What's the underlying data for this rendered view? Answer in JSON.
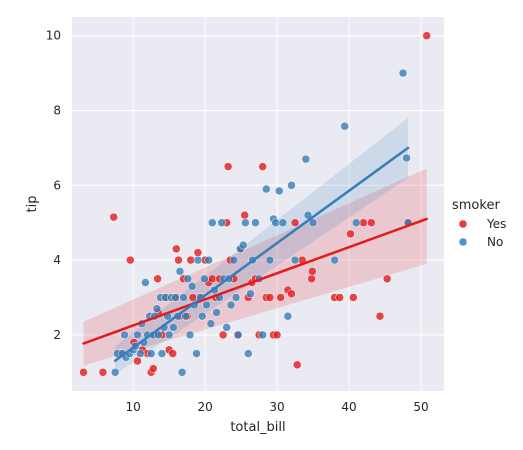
{
  "chart_data": {
    "type": "scatter",
    "title": "",
    "xlabel": "total_bill",
    "ylabel": "tip",
    "xlim": [
      1.5,
      53.2
    ],
    "ylim": [
      0.5,
      10.5
    ],
    "x_ticks": [
      "10",
      "20",
      "30",
      "40",
      "50"
    ],
    "y_ticks": [
      "2",
      "4",
      "6",
      "8",
      "10"
    ],
    "grid": true,
    "plot_background": "#eaeaf2",
    "legend": {
      "title": "smoker",
      "placement": "right"
    },
    "series": [
      {
        "name": "Yes",
        "color": "#e41a1c",
        "points": [
          [
            3.1,
            1.0
          ],
          [
            5.8,
            1.0
          ],
          [
            7.3,
            5.15
          ],
          [
            8.3,
            1.5
          ],
          [
            9.6,
            4.0
          ],
          [
            10.1,
            1.8
          ],
          [
            10.6,
            1.3
          ],
          [
            11.3,
            1.6
          ],
          [
            12.0,
            1.5
          ],
          [
            12.5,
            1.0
          ],
          [
            12.8,
            1.1
          ],
          [
            13.0,
            2.0
          ],
          [
            13.4,
            3.5
          ],
          [
            13.5,
            2.6
          ],
          [
            14.0,
            2.0
          ],
          [
            14.5,
            3.0
          ],
          [
            15.0,
            1.6
          ],
          [
            15.5,
            1.5
          ],
          [
            15.8,
            3.0
          ],
          [
            16.0,
            4.3
          ],
          [
            16.3,
            4.0
          ],
          [
            16.5,
            2.5
          ],
          [
            17.0,
            3.5
          ],
          [
            17.5,
            2.5
          ],
          [
            18.0,
            4.0
          ],
          [
            18.3,
            3.0
          ],
          [
            19.0,
            4.2
          ],
          [
            19.5,
            3.0
          ],
          [
            20.0,
            4.0
          ],
          [
            20.5,
            3.4
          ],
          [
            21.0,
            3.5
          ],
          [
            21.5,
            3.0
          ],
          [
            22.0,
            3.5
          ],
          [
            22.5,
            2.0
          ],
          [
            23.0,
            5.0
          ],
          [
            23.2,
            6.5
          ],
          [
            23.5,
            4.0
          ],
          [
            24.0,
            3.5
          ],
          [
            24.5,
            2.0
          ],
          [
            25.0,
            4.3
          ],
          [
            25.5,
            5.2
          ],
          [
            26.0,
            3.0
          ],
          [
            26.5,
            3.4
          ],
          [
            27.0,
            3.5
          ],
          [
            27.5,
            2.0
          ],
          [
            28.0,
            6.5
          ],
          [
            28.5,
            3.0
          ],
          [
            29.0,
            3.0
          ],
          [
            29.5,
            2.0
          ],
          [
            30.0,
            2.0
          ],
          [
            30.5,
            3.0
          ],
          [
            31.5,
            3.2
          ],
          [
            32.0,
            3.1
          ],
          [
            32.5,
            5.0
          ],
          [
            32.8,
            1.2
          ],
          [
            33.5,
            4.0
          ],
          [
            34.8,
            3.5
          ],
          [
            34.9,
            3.7
          ],
          [
            38.0,
            3.0
          ],
          [
            38.7,
            3.0
          ],
          [
            40.2,
            4.7
          ],
          [
            40.6,
            3.0
          ],
          [
            42.0,
            5.0
          ],
          [
            43.1,
            5.0
          ],
          [
            44.3,
            2.5
          ],
          [
            45.3,
            3.5
          ],
          [
            48.3,
            5.0
          ],
          [
            50.8,
            10.0
          ]
        ],
        "regression": {
          "x_range": [
            3.1,
            50.8
          ],
          "y_range": [
            1.77,
            5.1
          ],
          "ci_lower": [
            1.18,
            3.9
          ],
          "ci_upper": [
            2.35,
            6.45
          ]
        }
      },
      {
        "name": "No",
        "color": "#377eb8",
        "points": [
          [
            7.5,
            1.0
          ],
          [
            7.8,
            1.5
          ],
          [
            8.5,
            1.5
          ],
          [
            8.8,
            2.0
          ],
          [
            9.0,
            1.4
          ],
          [
            9.5,
            1.5
          ],
          [
            10.0,
            1.6
          ],
          [
            10.3,
            1.7
          ],
          [
            10.6,
            2.0
          ],
          [
            11.0,
            1.5
          ],
          [
            11.2,
            2.3
          ],
          [
            11.5,
            1.8
          ],
          [
            11.7,
            3.4
          ],
          [
            12.0,
            2.0
          ],
          [
            12.3,
            2.5
          ],
          [
            12.5,
            1.5
          ],
          [
            12.8,
            2.0
          ],
          [
            13.0,
            2.5
          ],
          [
            13.3,
            2.7
          ],
          [
            13.5,
            2.0
          ],
          [
            13.8,
            3.0
          ],
          [
            14.0,
            1.5
          ],
          [
            14.3,
            2.2
          ],
          [
            14.5,
            3.0
          ],
          [
            14.8,
            2.5
          ],
          [
            15.0,
            2.0
          ],
          [
            15.3,
            3.0
          ],
          [
            15.6,
            2.2
          ],
          [
            15.9,
            3.0
          ],
          [
            16.2,
            2.5
          ],
          [
            16.5,
            3.7
          ],
          [
            16.8,
            1.0
          ],
          [
            17.0,
            3.0
          ],
          [
            17.3,
            2.5
          ],
          [
            17.6,
            3.5
          ],
          [
            17.9,
            2.0
          ],
          [
            18.2,
            3.3
          ],
          [
            18.5,
            2.8
          ],
          [
            18.8,
            1.5
          ],
          [
            19.0,
            4.0
          ],
          [
            19.3,
            3.0
          ],
          [
            19.6,
            2.5
          ],
          [
            19.9,
            3.5
          ],
          [
            20.2,
            2.8
          ],
          [
            20.5,
            4.0
          ],
          [
            20.8,
            2.3
          ],
          [
            21.0,
            5.0
          ],
          [
            21.3,
            3.2
          ],
          [
            21.6,
            2.6
          ],
          [
            22.0,
            3.0
          ],
          [
            22.3,
            5.0
          ],
          [
            22.6,
            3.5
          ],
          [
            23.0,
            2.2
          ],
          [
            23.3,
            3.5
          ],
          [
            23.6,
            2.8
          ],
          [
            24.0,
            4.0
          ],
          [
            24.3,
            3.0
          ],
          [
            24.6,
            2.0
          ],
          [
            24.9,
            4.3
          ],
          [
            25.3,
            4.4
          ],
          [
            25.6,
            5.0
          ],
          [
            26.0,
            1.5
          ],
          [
            26.3,
            3.1
          ],
          [
            26.6,
            4.0
          ],
          [
            27.0,
            5.0
          ],
          [
            27.5,
            3.5
          ],
          [
            28.0,
            2.0
          ],
          [
            28.5,
            5.9
          ],
          [
            29.0,
            4.0
          ],
          [
            29.5,
            5.1
          ],
          [
            29.8,
            5.0
          ],
          [
            30.3,
            5.85
          ],
          [
            30.8,
            5.0
          ],
          [
            31.5,
            2.5
          ],
          [
            32.0,
            6.0
          ],
          [
            32.5,
            4.0
          ],
          [
            34.0,
            6.7
          ],
          [
            34.3,
            5.2
          ],
          [
            35.0,
            5.0
          ],
          [
            38.0,
            4.0
          ],
          [
            39.4,
            7.58
          ],
          [
            41.0,
            5.0
          ],
          [
            47.5,
            9.0
          ],
          [
            48.0,
            6.73
          ],
          [
            48.2,
            5.0
          ]
        ],
        "regression": {
          "x_range": [
            7.5,
            48.2
          ],
          "y_range": [
            1.31,
            7.0
          ],
          "ci_lower": [
            0.95,
            6.2
          ],
          "ci_upper": [
            1.7,
            7.8
          ]
        }
      }
    ]
  }
}
